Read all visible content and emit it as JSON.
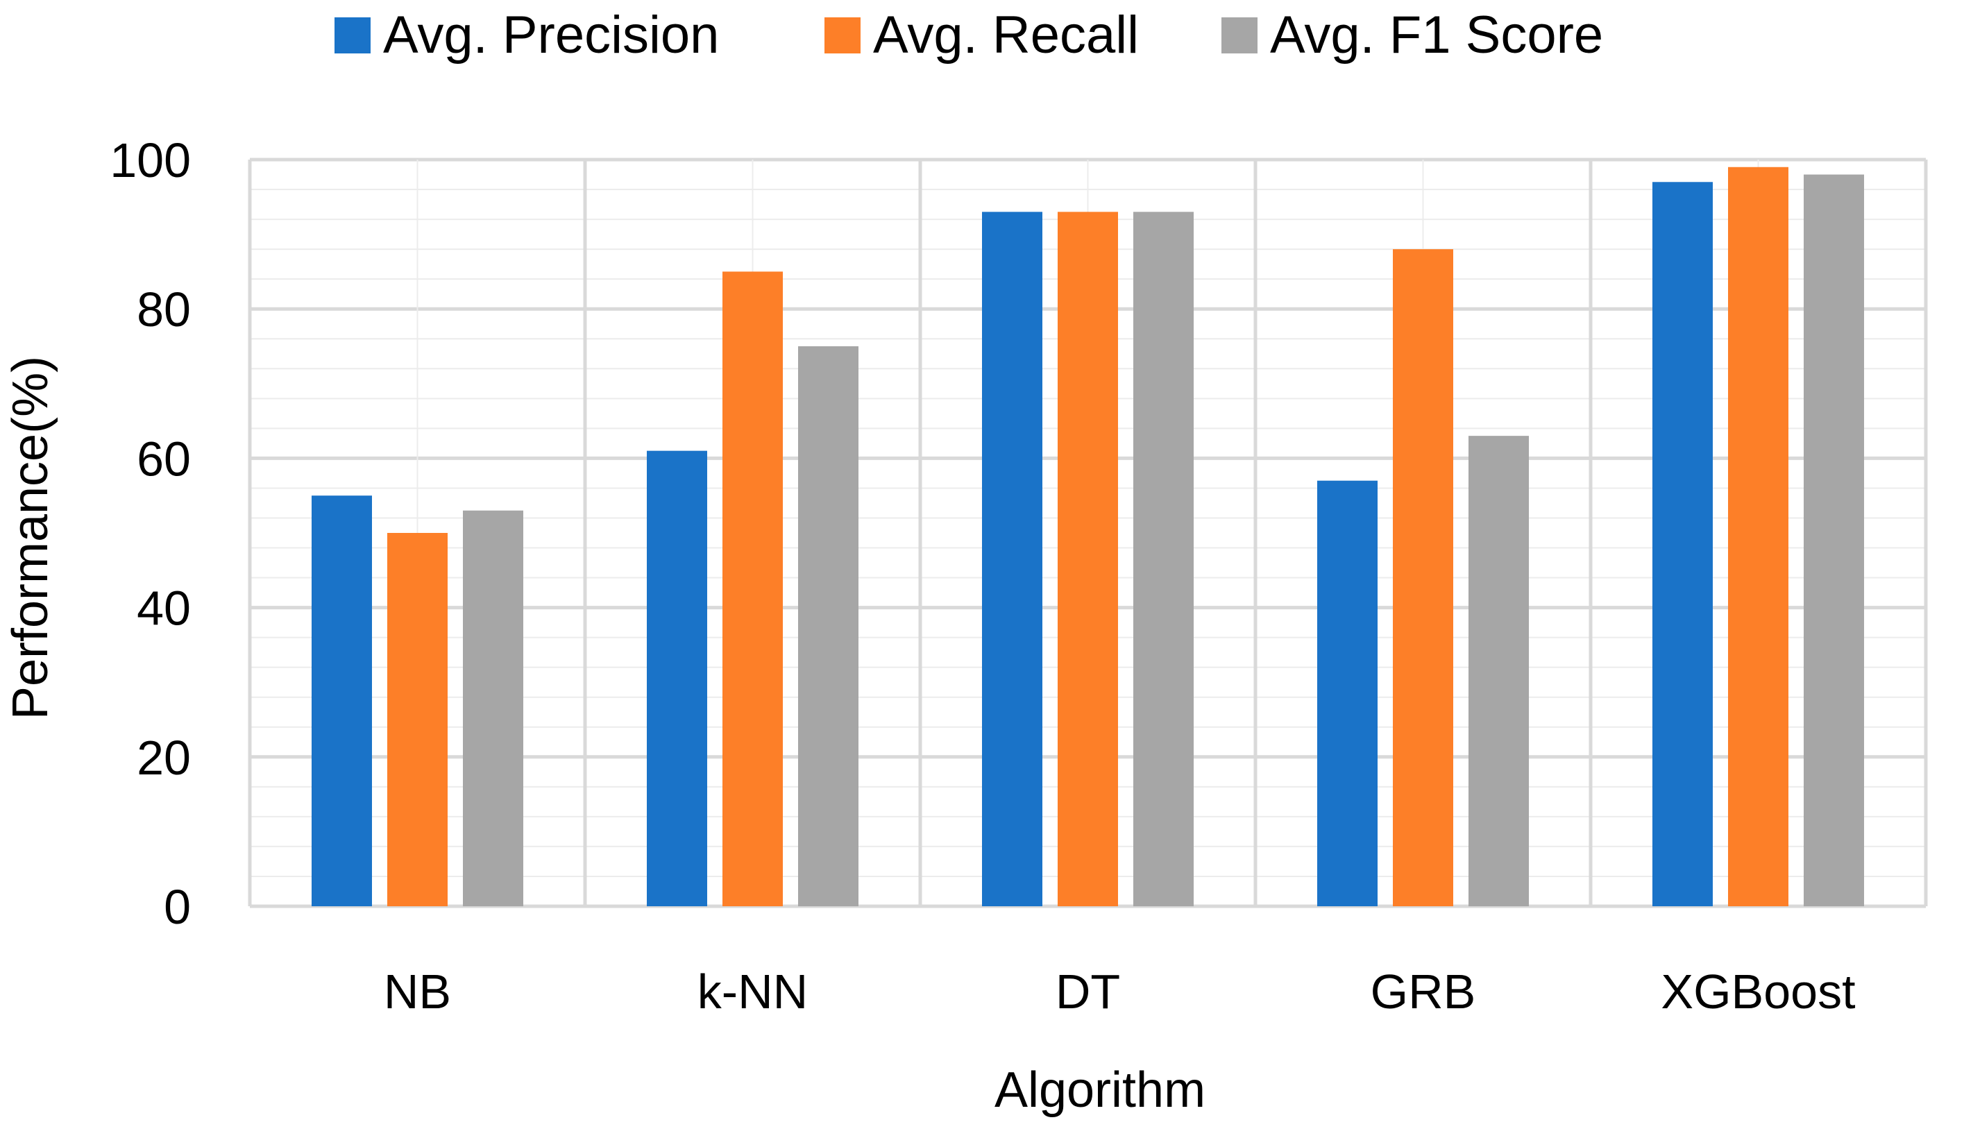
{
  "chart_data": {
    "type": "bar",
    "title": "",
    "xlabel": "Algorithm",
    "ylabel": "Performance(%)",
    "ylim": [
      0,
      100
    ],
    "y_ticks": [
      0,
      20,
      40,
      60,
      80,
      100
    ],
    "y_minor_step": 4,
    "grid": true,
    "legend_position": "top",
    "categories": [
      "NB",
      "k-NN",
      "DT",
      "GRB",
      "XGBoost"
    ],
    "series": [
      {
        "name": "Avg. Precision",
        "color": "#1a73c8",
        "values": [
          55,
          61,
          93,
          57,
          97
        ]
      },
      {
        "name": "Avg. Recall",
        "color": "#fd7f28",
        "values": [
          50,
          85,
          93,
          88,
          99
        ]
      },
      {
        "name": "Avg. F1 Score",
        "color": "#a6a6a6",
        "values": [
          53,
          75,
          93,
          63,
          98
        ]
      }
    ]
  }
}
